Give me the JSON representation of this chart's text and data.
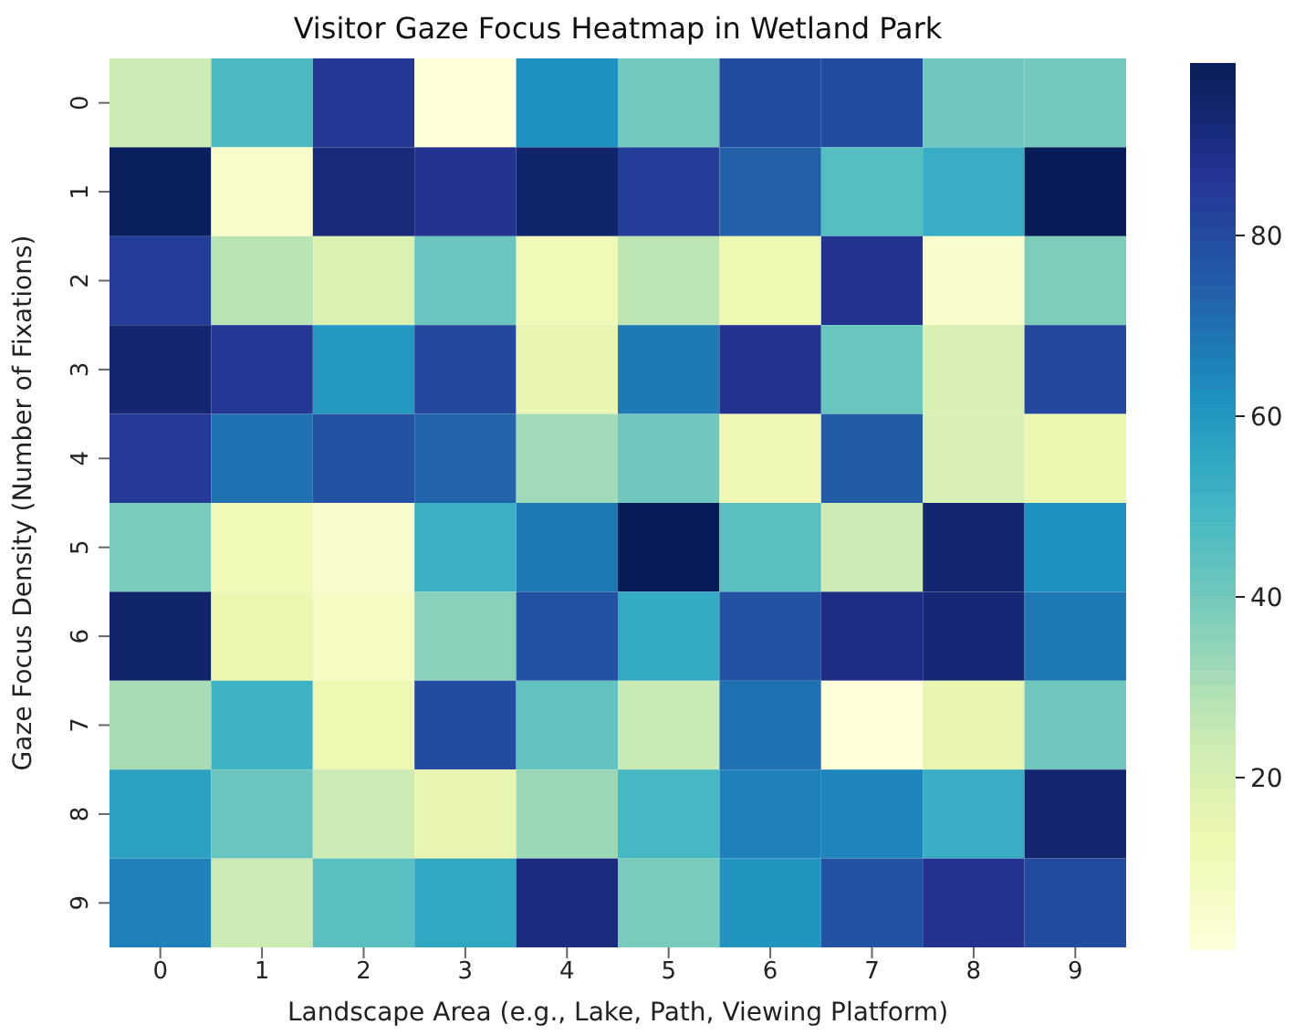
{
  "chart_data": {
    "type": "heatmap",
    "title": "Visitor Gaze Focus Heatmap in Wetland Park",
    "xlabel": "Landscape Area (e.g., Lake, Path, Viewing Platform)",
    "ylabel": "Gaze Focus Density (Number of Fixations)",
    "categories": [
      "0",
      "1",
      "2",
      "3",
      "4",
      "5",
      "6",
      "7",
      "8",
      "9"
    ],
    "y_categories": [
      "0",
      "1",
      "2",
      "3",
      "4",
      "5",
      "6",
      "7",
      "8",
      "9"
    ],
    "cells": [
      [
        24,
        48,
        86,
        1,
        62,
        40,
        80,
        80,
        41,
        40
      ],
      [
        98,
        6,
        92,
        88,
        95,
        84,
        74,
        46,
        53,
        99
      ],
      [
        84,
        28,
        19,
        42,
        11,
        27,
        13,
        88,
        5,
        38
      ],
      [
        94,
        86,
        60,
        81,
        15,
        68,
        88,
        42,
        20,
        81
      ],
      [
        85,
        70,
        78,
        73,
        32,
        41,
        12,
        75,
        20,
        14
      ],
      [
        39,
        11,
        5,
        52,
        68,
        99,
        45,
        24,
        94,
        62
      ],
      [
        95,
        14,
        8,
        36,
        78,
        54,
        78,
        90,
        93,
        68
      ],
      [
        31,
        51,
        13,
        80,
        43,
        25,
        70,
        1,
        15,
        41
      ],
      [
        57,
        42,
        24,
        15,
        33,
        49,
        66,
        65,
        53,
        94
      ],
      [
        66,
        24,
        45,
        55,
        91,
        39,
        61,
        78,
        88,
        80
      ]
    ],
    "clim": [
      1,
      99
    ],
    "cticks": [
      20,
      40,
      60,
      80
    ]
  }
}
